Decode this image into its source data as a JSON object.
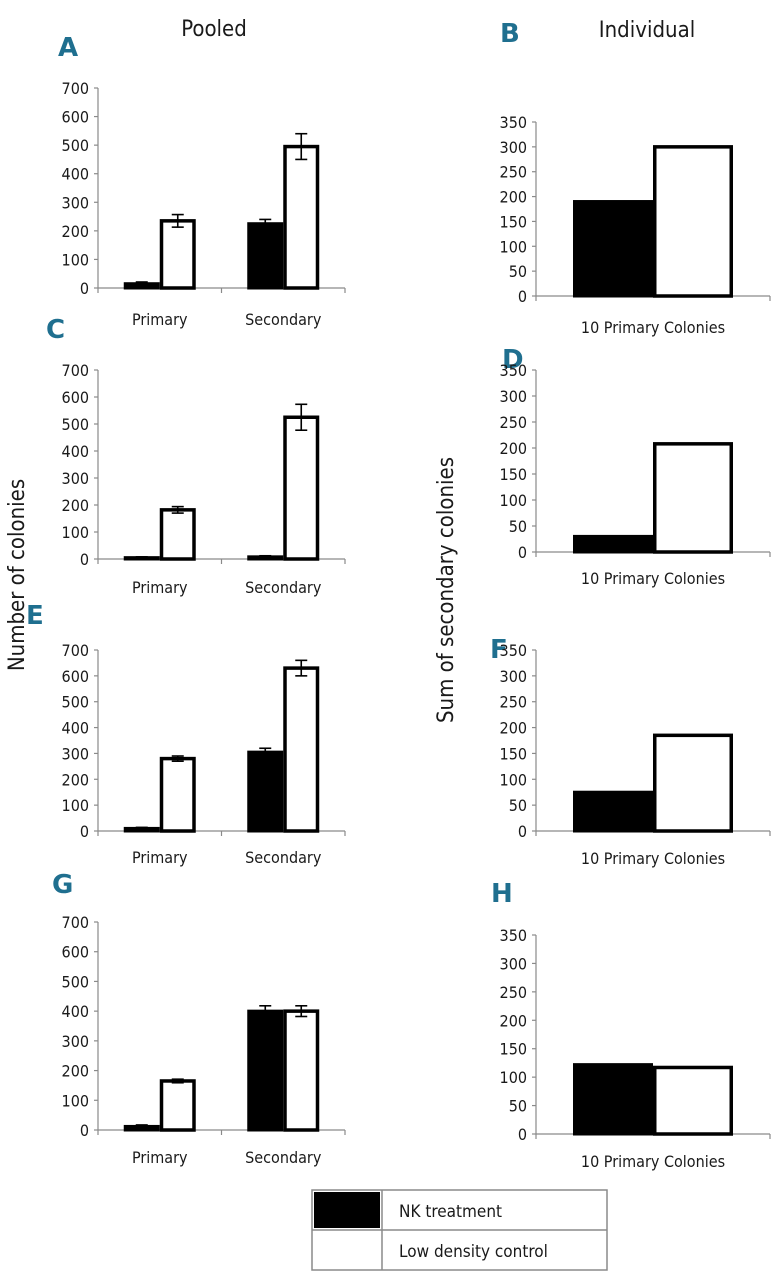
{
  "column_titles": {
    "left": "Pooled",
    "right": "Individual"
  },
  "y_label_left": "Number of colonies",
  "y_label_right": "Sum of secondary colonies",
  "colors": {
    "letter": "#1f6f8f",
    "nk": "#000000",
    "ld": "#ffffff"
  },
  "legend": [
    {
      "name": "NK treatment",
      "color": "#000000"
    },
    {
      "name": "Low density control",
      "color": "#ffffff"
    }
  ],
  "chart_data": [
    {
      "panel": "A",
      "type": "bar",
      "group": "Pooled",
      "categories": [
        "Primary",
        "Secondary"
      ],
      "series": [
        {
          "name": "NK treatment",
          "values": [
            15,
            225
          ],
          "errors": [
            6,
            15
          ]
        },
        {
          "name": "Low density control",
          "values": [
            235,
            495
          ],
          "errors": [
            22,
            45
          ]
        }
      ],
      "ylim": [
        0,
        700
      ],
      "yticks": [
        0,
        100,
        200,
        300,
        400,
        500,
        600,
        700
      ]
    },
    {
      "panel": "B",
      "type": "bar",
      "group": "Individual",
      "categories": [
        "10 Primary Colonies"
      ],
      "series": [
        {
          "name": "NK treatment",
          "values": [
            190
          ]
        },
        {
          "name": "Low density control",
          "values": [
            300
          ]
        }
      ],
      "ylim": [
        0,
        350
      ],
      "yticks": [
        0,
        50,
        100,
        150,
        200,
        250,
        300,
        350
      ]
    },
    {
      "panel": "C",
      "type": "bar",
      "group": "Pooled",
      "categories": [
        "Primary",
        "Secondary"
      ],
      "series": [
        {
          "name": "NK treatment",
          "values": [
            5,
            8
          ],
          "errors": [
            3,
            4
          ]
        },
        {
          "name": "Low density control",
          "values": [
            182,
            525
          ],
          "errors": [
            12,
            48
          ]
        }
      ],
      "ylim": [
        0,
        700
      ],
      "yticks": [
        0,
        100,
        200,
        300,
        400,
        500,
        600,
        700
      ]
    },
    {
      "panel": "D",
      "type": "bar",
      "group": "Individual",
      "categories": [
        "10 Primary Colonies"
      ],
      "series": [
        {
          "name": "NK treatment",
          "values": [
            30
          ]
        },
        {
          "name": "Low density control",
          "values": [
            208
          ]
        }
      ],
      "ylim": [
        0,
        350
      ],
      "yticks": [
        0,
        50,
        100,
        150,
        200,
        250,
        300,
        350
      ]
    },
    {
      "panel": "E",
      "type": "bar",
      "group": "Pooled",
      "categories": [
        "Primary",
        "Secondary"
      ],
      "series": [
        {
          "name": "NK treatment",
          "values": [
            10,
            305
          ],
          "errors": [
            4,
            15
          ]
        },
        {
          "name": "Low density control",
          "values": [
            280,
            630
          ],
          "errors": [
            10,
            30
          ]
        }
      ],
      "ylim": [
        0,
        700
      ],
      "yticks": [
        0,
        100,
        200,
        300,
        400,
        500,
        600,
        700
      ]
    },
    {
      "panel": "F",
      "type": "bar",
      "group": "Individual",
      "categories": [
        "10 Primary Colonies"
      ],
      "series": [
        {
          "name": "NK treatment",
          "values": [
            75
          ]
        },
        {
          "name": "Low density control",
          "values": [
            185
          ]
        }
      ],
      "ylim": [
        0,
        350
      ],
      "yticks": [
        0,
        50,
        100,
        150,
        200,
        250,
        300,
        350
      ]
    },
    {
      "panel": "G",
      "type": "bar",
      "group": "Pooled",
      "categories": [
        "Primary",
        "Secondary"
      ],
      "series": [
        {
          "name": "NK treatment",
          "values": [
            12,
            400
          ],
          "errors": [
            5,
            18
          ]
        },
        {
          "name": "Low density control",
          "values": [
            165,
            400
          ],
          "errors": [
            6,
            18
          ]
        }
      ],
      "ylim": [
        0,
        700
      ],
      "yticks": [
        0,
        100,
        200,
        300,
        400,
        500,
        600,
        700
      ]
    },
    {
      "panel": "H",
      "type": "bar",
      "group": "Individual",
      "categories": [
        "10 Primary Colonies"
      ],
      "series": [
        {
          "name": "NK treatment",
          "values": [
            122
          ]
        },
        {
          "name": "Low density control",
          "values": [
            117
          ]
        }
      ],
      "ylim": [
        0,
        350
      ],
      "yticks": [
        0,
        50,
        100,
        150,
        200,
        250,
        300,
        350
      ]
    }
  ]
}
